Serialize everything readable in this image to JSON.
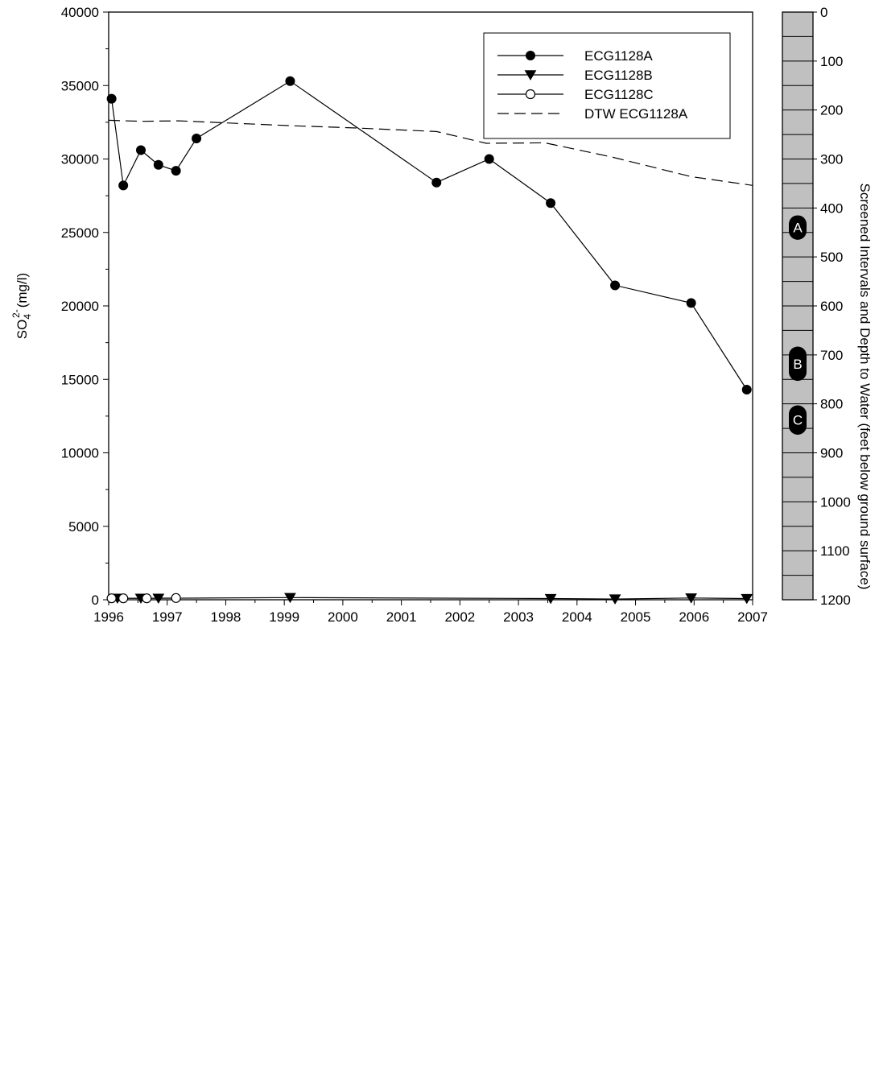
{
  "chart_data": {
    "type": "line",
    "x_range": [
      1996,
      2007
    ],
    "y_range": [
      0,
      40000
    ],
    "depth_range": [
      0,
      1200
    ],
    "x_ticks": [
      "1996",
      "1997",
      "1998",
      "1999",
      "2000",
      "2001",
      "2002",
      "2003",
      "2004",
      "2005",
      "2006",
      "2007"
    ],
    "y_ticks": [
      "0",
      "5000",
      "10000",
      "15000",
      "20000",
      "25000",
      "30000",
      "35000",
      "40000"
    ],
    "depth_ticks": [
      "0",
      "100",
      "200",
      "300",
      "400",
      "500",
      "600",
      "700",
      "800",
      "900",
      "1000",
      "1100",
      "1200"
    ],
    "y_label": {
      "text": "SO",
      "subscript": "4",
      "superscript": "2-",
      "unit": "(mg/l)"
    },
    "depth_label": "Screened Intervals and Depth to Water (feet below ground surface)",
    "legend_position": "top-right",
    "series": [
      {
        "name": "ECG1128A",
        "marker": "filled-circle",
        "style": "solid",
        "points": [
          [
            1996.05,
            34100
          ],
          [
            1996.25,
            28200
          ],
          [
            1996.55,
            30600
          ],
          [
            1996.85,
            29600
          ],
          [
            1997.15,
            29200
          ],
          [
            1997.5,
            31400
          ],
          [
            1999.1,
            35300
          ],
          [
            2001.6,
            28400
          ],
          [
            2002.5,
            30000
          ],
          [
            2003.55,
            27000
          ],
          [
            2004.65,
            21400
          ],
          [
            2005.95,
            20200
          ],
          [
            2006.9,
            14300
          ]
        ]
      },
      {
        "name": "ECG1128B",
        "marker": "filled-triangle-down",
        "style": "solid",
        "points": [
          [
            1996.15,
            100
          ],
          [
            1996.55,
            100
          ],
          [
            1996.85,
            100
          ],
          [
            1999.1,
            150
          ],
          [
            2003.55,
            80
          ],
          [
            2004.65,
            50
          ],
          [
            2005.95,
            120
          ],
          [
            2006.9,
            80
          ]
        ]
      },
      {
        "name": "ECG1128C",
        "marker": "open-circle",
        "style": "solid",
        "points": [
          [
            1996.05,
            100
          ],
          [
            1996.25,
            100
          ],
          [
            1996.65,
            100
          ],
          [
            1997.15,
            120
          ]
        ]
      },
      {
        "name": "DTW ECG1128A",
        "marker": "none",
        "style": "dashed",
        "axis": "depth",
        "points": [
          [
            1996.0,
            221
          ],
          [
            1996.55,
            223
          ],
          [
            1997.2,
            222
          ],
          [
            1999.1,
            232
          ],
          [
            2000.3,
            237
          ],
          [
            2001.6,
            244
          ],
          [
            2002.45,
            268
          ],
          [
            2003.45,
            267
          ],
          [
            2004.6,
            296
          ],
          [
            2005.95,
            336
          ],
          [
            2007.0,
            354
          ]
        ]
      }
    ],
    "screened_intervals": [
      {
        "label": "A",
        "top": 415,
        "bottom": 465
      },
      {
        "label": "B",
        "top": 683,
        "bottom": 753
      },
      {
        "label": "C",
        "top": 803,
        "bottom": 863
      }
    ]
  }
}
